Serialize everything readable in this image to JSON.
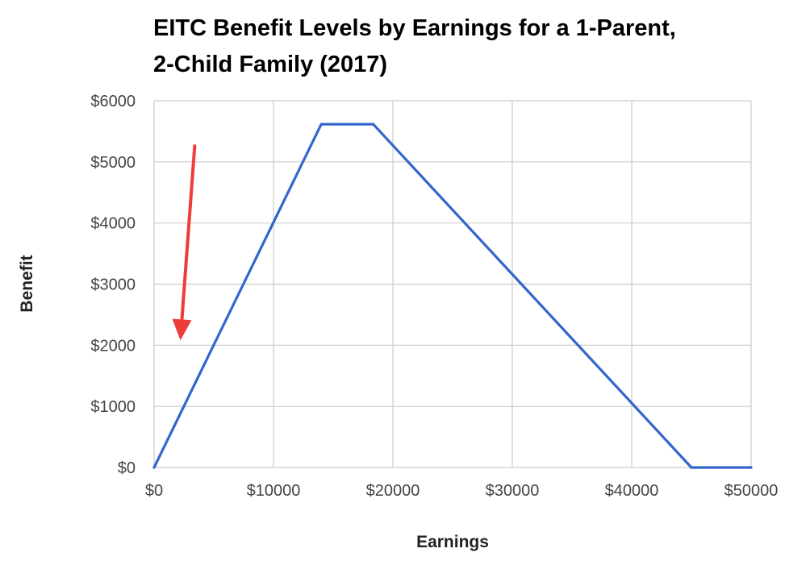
{
  "chart_data": {
    "type": "line",
    "title_lines": [
      "EITC Benefit Levels by Earnings for a 1-Parent,",
      "2-Child Family (2017)"
    ],
    "xlabel": "Earnings",
    "ylabel": "Benefit",
    "xlim": [
      0,
      50000
    ],
    "ylim": [
      0,
      6000
    ],
    "x_ticks": [
      0,
      10000,
      20000,
      30000,
      40000,
      50000
    ],
    "x_tick_labels": [
      "$0",
      "$10000",
      "$20000",
      "$30000",
      "$40000",
      "$50000"
    ],
    "y_ticks": [
      0,
      1000,
      2000,
      3000,
      4000,
      5000,
      6000
    ],
    "y_tick_labels": [
      "$0",
      "$1000",
      "$2000",
      "$3000",
      "$4000",
      "$5000",
      "$6000"
    ],
    "grid": true,
    "series": [
      {
        "color": "#3366cc",
        "points": [
          {
            "x": 0,
            "y": 0
          },
          {
            "x": 14000,
            "y": 5616
          },
          {
            "x": 18350,
            "y": 5616
          },
          {
            "x": 45000,
            "y": 0
          },
          {
            "x": 50000,
            "y": 0
          }
        ]
      }
    ],
    "annotation": {
      "kind": "arrow",
      "color": "#ee3b3b",
      "from": {
        "x": 3400,
        "y": 5260
      },
      "to": {
        "x": 2200,
        "y": 2080
      }
    }
  }
}
